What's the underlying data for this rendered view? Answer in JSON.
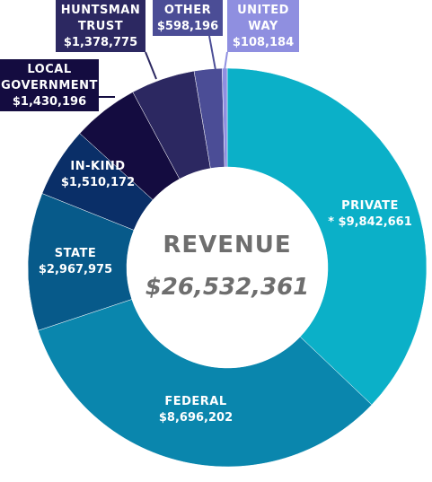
{
  "chart_data": {
    "type": "pie",
    "variant": "donut",
    "title": "REVENUE",
    "total": "$26,532,361",
    "slices": [
      {
        "name": "PRIVATE",
        "value_label": "* $9,842,661",
        "value": 9842661,
        "color": "#0bb0c8"
      },
      {
        "name": "FEDERAL",
        "value_label": "$8,696,202",
        "value": 8696202,
        "color": "#0a86ad"
      },
      {
        "name": "STATE",
        "value_label": "$2,967,975",
        "value": 2967975,
        "color": "#075a8a"
      },
      {
        "name": "IN-KIND",
        "value_label": "$1,510,172",
        "value": 1510172,
        "color": "#0a2f68"
      },
      {
        "name": "LOCAL GOVERNMENT",
        "value_label": "$1,430,196",
        "value": 1430196,
        "color": "#140c40"
      },
      {
        "name": "HUNTSMAN TRUST",
        "value_label": "$1,378,775",
        "value": 1378775,
        "color": "#2c2861"
      },
      {
        "name": "OTHER",
        "value_label": "$598,196",
        "value": 598196,
        "color": "#4b4d96"
      },
      {
        "name": "UNITED WAY",
        "value_label": "$108,184",
        "value": 108184,
        "color": "#8f8fe0"
      }
    ]
  }
}
